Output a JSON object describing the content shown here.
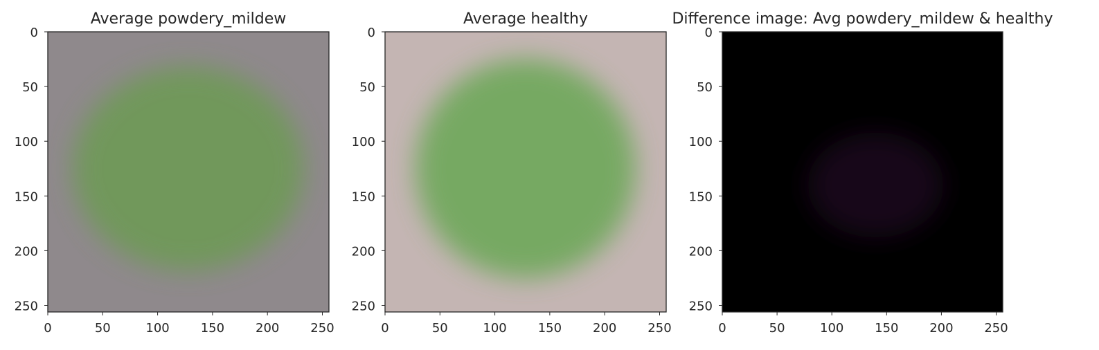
{
  "chart_data": [
    {
      "type": "image",
      "title": "Average powdery_mildew",
      "xlim": [
        0,
        256
      ],
      "ylim": [
        256,
        0
      ],
      "xticks": [
        0,
        50,
        100,
        150,
        200,
        250
      ],
      "yticks": [
        0,
        50,
        100,
        150,
        200,
        250
      ],
      "background_color": "#8f898c",
      "blob_color": "#6e9a56",
      "blob_center": [
        128,
        125
      ],
      "blob_radius": [
        105,
        93
      ],
      "blob_opacity": 0.9
    },
    {
      "type": "image",
      "title": "Average healthy",
      "xlim": [
        0,
        256
      ],
      "ylim": [
        256,
        0
      ],
      "xticks": [
        0,
        50,
        100,
        150,
        200,
        250
      ],
      "yticks": [
        0,
        50,
        100,
        150,
        200,
        250
      ],
      "background_color": "#c4b5b3",
      "blob_color": "#6ea85a",
      "blob_center": [
        128,
        125
      ],
      "blob_radius": [
        100,
        100
      ],
      "blob_opacity": 0.9
    },
    {
      "type": "image",
      "title": "Difference image: Avg powdery_mildew & healthy",
      "xlim": [
        0,
        256
      ],
      "ylim": [
        256,
        0
      ],
      "xticks": [
        0,
        50,
        100,
        150,
        200,
        250
      ],
      "yticks": [
        0,
        50,
        100,
        150,
        200,
        250
      ],
      "background_color": "#000000",
      "blob_color": "#2a0f2e",
      "blob_center": [
        140,
        140
      ],
      "blob_radius": [
        62,
        48
      ],
      "blob_opacity": 0.55
    }
  ]
}
